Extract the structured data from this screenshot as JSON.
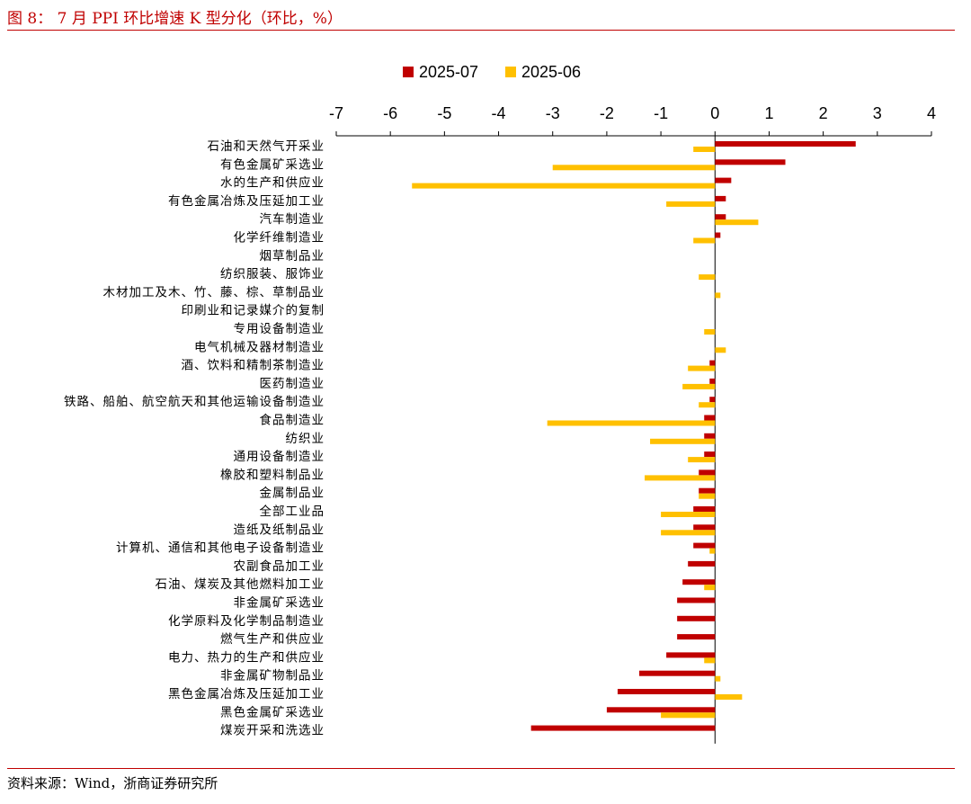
{
  "header": {
    "title": "图 8：  7 月 PPI 环比增速 K 型分化（环比，%）"
  },
  "footer": {
    "source": "资料来源：Wind，浙商证券研究所"
  },
  "colors": {
    "series_2025_07": "#C00000",
    "series_2025_06": "#FFC000",
    "accent": "#C00000"
  },
  "chart_data": {
    "type": "bar",
    "orientation": "horizontal",
    "title": "",
    "xlabel": "",
    "ylabel": "",
    "xlim": [
      -7,
      4
    ],
    "xticks": [
      -7,
      -6,
      -5,
      -4,
      -3,
      -2,
      -1,
      0,
      1,
      2,
      3,
      4
    ],
    "x_axis_position": "top",
    "legend_position": "top",
    "grid": false,
    "categories": [
      "石油和天然气开采业",
      "有色金属矿采选业",
      "水的生产和供应业",
      "有色金属冶炼及压延加工业",
      "汽车制造业",
      "化学纤维制造业",
      "烟草制品业",
      "纺织服装、服饰业",
      "木材加工及木、竹、藤、棕、草制品业",
      "印刷业和记录媒介的复制",
      "专用设备制造业",
      "电气机械及器材制造业",
      "酒、饮料和精制茶制造业",
      "医药制造业",
      "铁路、船舶、航空航天和其他运输设备制造业",
      "食品制造业",
      "纺织业",
      "通用设备制造业",
      "橡胶和塑料制品业",
      "金属制品业",
      "全部工业品",
      "造纸及纸制品业",
      "计算机、通信和其他电子设备制造业",
      "农副食品加工业",
      "石油、煤炭及其他燃料加工业",
      "非金属矿采选业",
      "化学原料及化学制品制造业",
      "燃气生产和供应业",
      "电力、热力的生产和供应业",
      "非金属矿物制品业",
      "黑色金属冶炼及压延加工业",
      "黑色金属矿采选业",
      "煤炭开采和洗选业"
    ],
    "series": [
      {
        "name": "2025-07",
        "color": "#C00000",
        "values": [
          2.6,
          1.3,
          0.3,
          0.2,
          0.2,
          0.1,
          0,
          0,
          0,
          0,
          0,
          0,
          -0.1,
          -0.1,
          -0.1,
          -0.2,
          -0.2,
          -0.2,
          -0.3,
          -0.3,
          -0.4,
          -0.4,
          -0.4,
          -0.5,
          -0.6,
          -0.7,
          -0.7,
          -0.7,
          -0.9,
          -1.4,
          -1.8,
          -2.0,
          -3.4
        ]
      },
      {
        "name": "2025-06",
        "color": "#FFC000",
        "values": [
          -0.4,
          -3.0,
          -5.6,
          -0.9,
          0.8,
          -0.4,
          0,
          -0.3,
          0.1,
          0,
          -0.2,
          0.2,
          -0.5,
          -0.6,
          -0.3,
          -3.1,
          -1.2,
          -0.5,
          -1.3,
          -0.3,
          -1.0,
          -1.0,
          -0.1,
          0,
          -0.2,
          0,
          0,
          0,
          -0.2,
          0.1,
          0.5,
          -1.0,
          0
        ]
      }
    ]
  }
}
